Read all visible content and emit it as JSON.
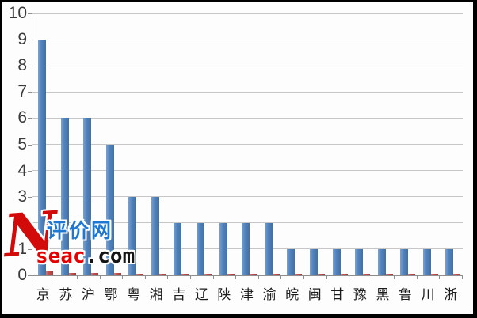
{
  "chart_data": {
    "type": "bar",
    "title": "",
    "xlabel": "",
    "ylabel": "",
    "categories": [
      "京",
      "苏",
      "沪",
      "鄂",
      "粤",
      "湘",
      "吉",
      "辽",
      "陕",
      "津",
      "渝",
      "皖",
      "闽",
      "甘",
      "豫",
      "黑",
      "鲁",
      "川",
      "浙"
    ],
    "series": [
      {
        "name": "series-1-blue",
        "color": "#4F81BD",
        "values": [
          9,
          6,
          6,
          5,
          3,
          3,
          2,
          2,
          2,
          2,
          2,
          1,
          1,
          1,
          1,
          1,
          1,
          1,
          1
        ]
      },
      {
        "name": "series-2-red",
        "color": "#BE4B48",
        "values": [
          0.15,
          0.1,
          0.1,
          0.1,
          0.07,
          0.07,
          0.05,
          0.04,
          0.04,
          0.04,
          0.04,
          0.03,
          0.03,
          0.02,
          0.02,
          0.02,
          0.02,
          0.02,
          0.02
        ]
      }
    ],
    "ylim": [
      0,
      10
    ],
    "ytick_labels": [
      "0",
      "1",
      "2",
      "3",
      "4",
      "5",
      "6",
      "7",
      "8",
      "9",
      "10"
    ],
    "grid": true,
    "legend": false
  },
  "watermark": {
    "logo_letter": "N",
    "site_name": "评价网",
    "domain_red": "seac",
    "domain_dark": ".com"
  },
  "colors": {
    "gridline": "#C6C6C6",
    "axis": "#8E8E8E",
    "ytick_label": "#3A3A3A",
    "xtick_label": "#1C1C1C",
    "watermark_red": "#D20A0A",
    "watermark_blue": "#1E78D2",
    "watermark_dark": "#141414"
  }
}
